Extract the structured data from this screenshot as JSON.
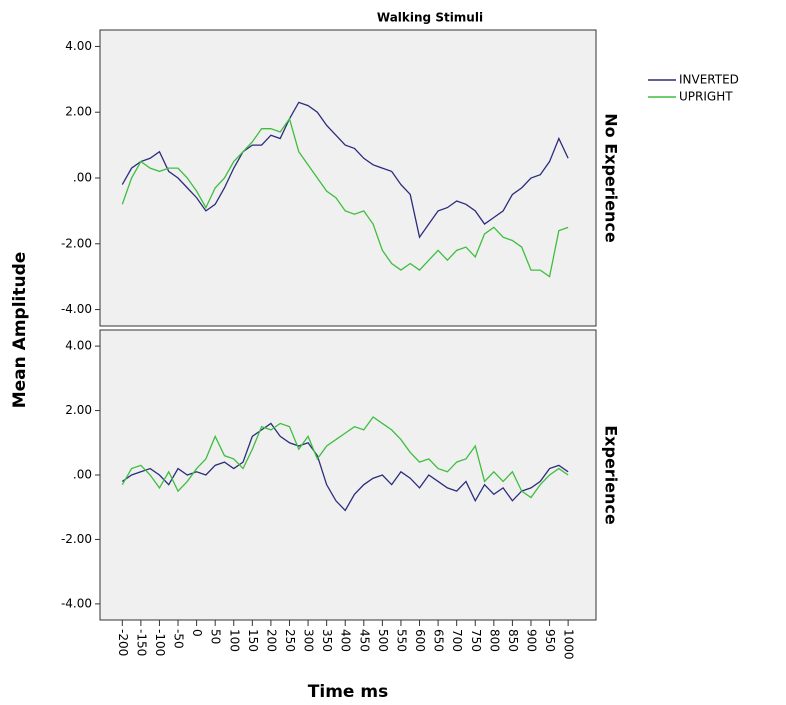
{
  "chart_data": {
    "type": "line",
    "title": "Walking Stimuli",
    "x_label": "Time ms",
    "y_label": "Mean Amplitude",
    "legend": "top-right",
    "x": [
      -200,
      -175,
      -150,
      -125,
      -100,
      -75,
      -50,
      -25,
      0,
      25,
      50,
      75,
      100,
      125,
      150,
      175,
      200,
      225,
      250,
      275,
      300,
      325,
      350,
      375,
      400,
      425,
      450,
      475,
      500,
      525,
      550,
      575,
      600,
      625,
      650,
      675,
      700,
      725,
      750,
      775,
      800,
      825,
      850,
      875,
      900,
      925,
      950,
      975,
      1000
    ],
    "xlim": [
      -260,
      1075
    ],
    "xticks": [
      -200,
      -150,
      -100,
      -50,
      0,
      50,
      100,
      150,
      200,
      250,
      300,
      350,
      400,
      450,
      500,
      550,
      600,
      650,
      700,
      750,
      800,
      850,
      900,
      950,
      1000
    ],
    "ylim": [
      -4.5,
      4.5
    ],
    "yticks": [
      {
        "value": 4,
        "label": "4.00"
      },
      {
        "value": 2,
        "label": "2.00"
      },
      {
        "value": 0,
        "label": ".00"
      },
      {
        "value": -2,
        "label": "-2.00"
      },
      {
        "value": -4,
        "label": "-4.00"
      }
    ],
    "panels": [
      {
        "label": "No Experience",
        "series": [
          {
            "name": "INVERTED",
            "color": "#2b2d7c",
            "values": [
              -0.2,
              0.3,
              0.5,
              0.6,
              0.8,
              0.2,
              0.0,
              -0.3,
              -0.6,
              -1.0,
              -0.8,
              -0.3,
              0.3,
              0.8,
              1.0,
              1.0,
              1.3,
              1.2,
              1.8,
              2.3,
              2.2,
              2.0,
              1.6,
              1.3,
              1.0,
              0.9,
              0.6,
              0.4,
              0.3,
              0.2,
              -0.2,
              -0.5,
              -1.8,
              -1.4,
              -1.0,
              -0.9,
              -0.7,
              -0.8,
              -1.0,
              -1.4,
              -1.2,
              -1.0,
              -0.5,
              -0.3,
              0.0,
              0.1,
              0.5,
              1.2,
              0.6
            ]
          },
          {
            "name": "UPRIGHT",
            "color": "#3dbf3d",
            "values": [
              -0.8,
              0.0,
              0.5,
              0.3,
              0.2,
              0.3,
              0.3,
              0.0,
              -0.4,
              -0.9,
              -0.3,
              0.0,
              0.5,
              0.8,
              1.1,
              1.5,
              1.5,
              1.4,
              1.8,
              0.8,
              0.4,
              0.0,
              -0.4,
              -0.6,
              -1.0,
              -1.1,
              -1.0,
              -1.4,
              -2.2,
              -2.6,
              -2.8,
              -2.6,
              -2.8,
              -2.5,
              -2.2,
              -2.5,
              -2.2,
              -2.1,
              -2.4,
              -1.7,
              -1.5,
              -1.8,
              -1.9,
              -2.1,
              -2.8,
              -2.8,
              -3.0,
              -1.6,
              -1.5
            ]
          }
        ]
      },
      {
        "label": "Experience",
        "series": [
          {
            "name": "INVERTED",
            "color": "#2b2d7c",
            "values": [
              -0.2,
              0.0,
              0.1,
              0.2,
              0.0,
              -0.3,
              0.2,
              0.0,
              0.1,
              0.0,
              0.3,
              0.4,
              0.2,
              0.4,
              1.2,
              1.4,
              1.6,
              1.2,
              1.0,
              0.9,
              1.0,
              0.6,
              -0.3,
              -0.8,
              -1.1,
              -0.6,
              -0.3,
              -0.1,
              0.0,
              -0.3,
              0.1,
              -0.1,
              -0.4,
              0.0,
              -0.2,
              -0.4,
              -0.5,
              -0.2,
              -0.8,
              -0.3,
              -0.6,
              -0.4,
              -0.8,
              -0.5,
              -0.4,
              -0.2,
              0.2,
              0.3,
              0.1
            ]
          },
          {
            "name": "UPRIGHT",
            "color": "#3dbf3d",
            "values": [
              -0.3,
              0.2,
              0.3,
              0.0,
              -0.4,
              0.1,
              -0.5,
              -0.2,
              0.2,
              0.5,
              1.2,
              0.6,
              0.5,
              0.2,
              0.8,
              1.5,
              1.4,
              1.6,
              1.5,
              0.8,
              1.2,
              0.5,
              0.9,
              1.1,
              1.3,
              1.5,
              1.4,
              1.8,
              1.6,
              1.4,
              1.1,
              0.7,
              0.4,
              0.5,
              0.2,
              0.1,
              0.4,
              0.5,
              0.9,
              -0.2,
              0.1,
              -0.2,
              0.1,
              -0.5,
              -0.7,
              -0.3,
              0.0,
              0.2,
              0.0
            ]
          }
        ]
      }
    ]
  }
}
